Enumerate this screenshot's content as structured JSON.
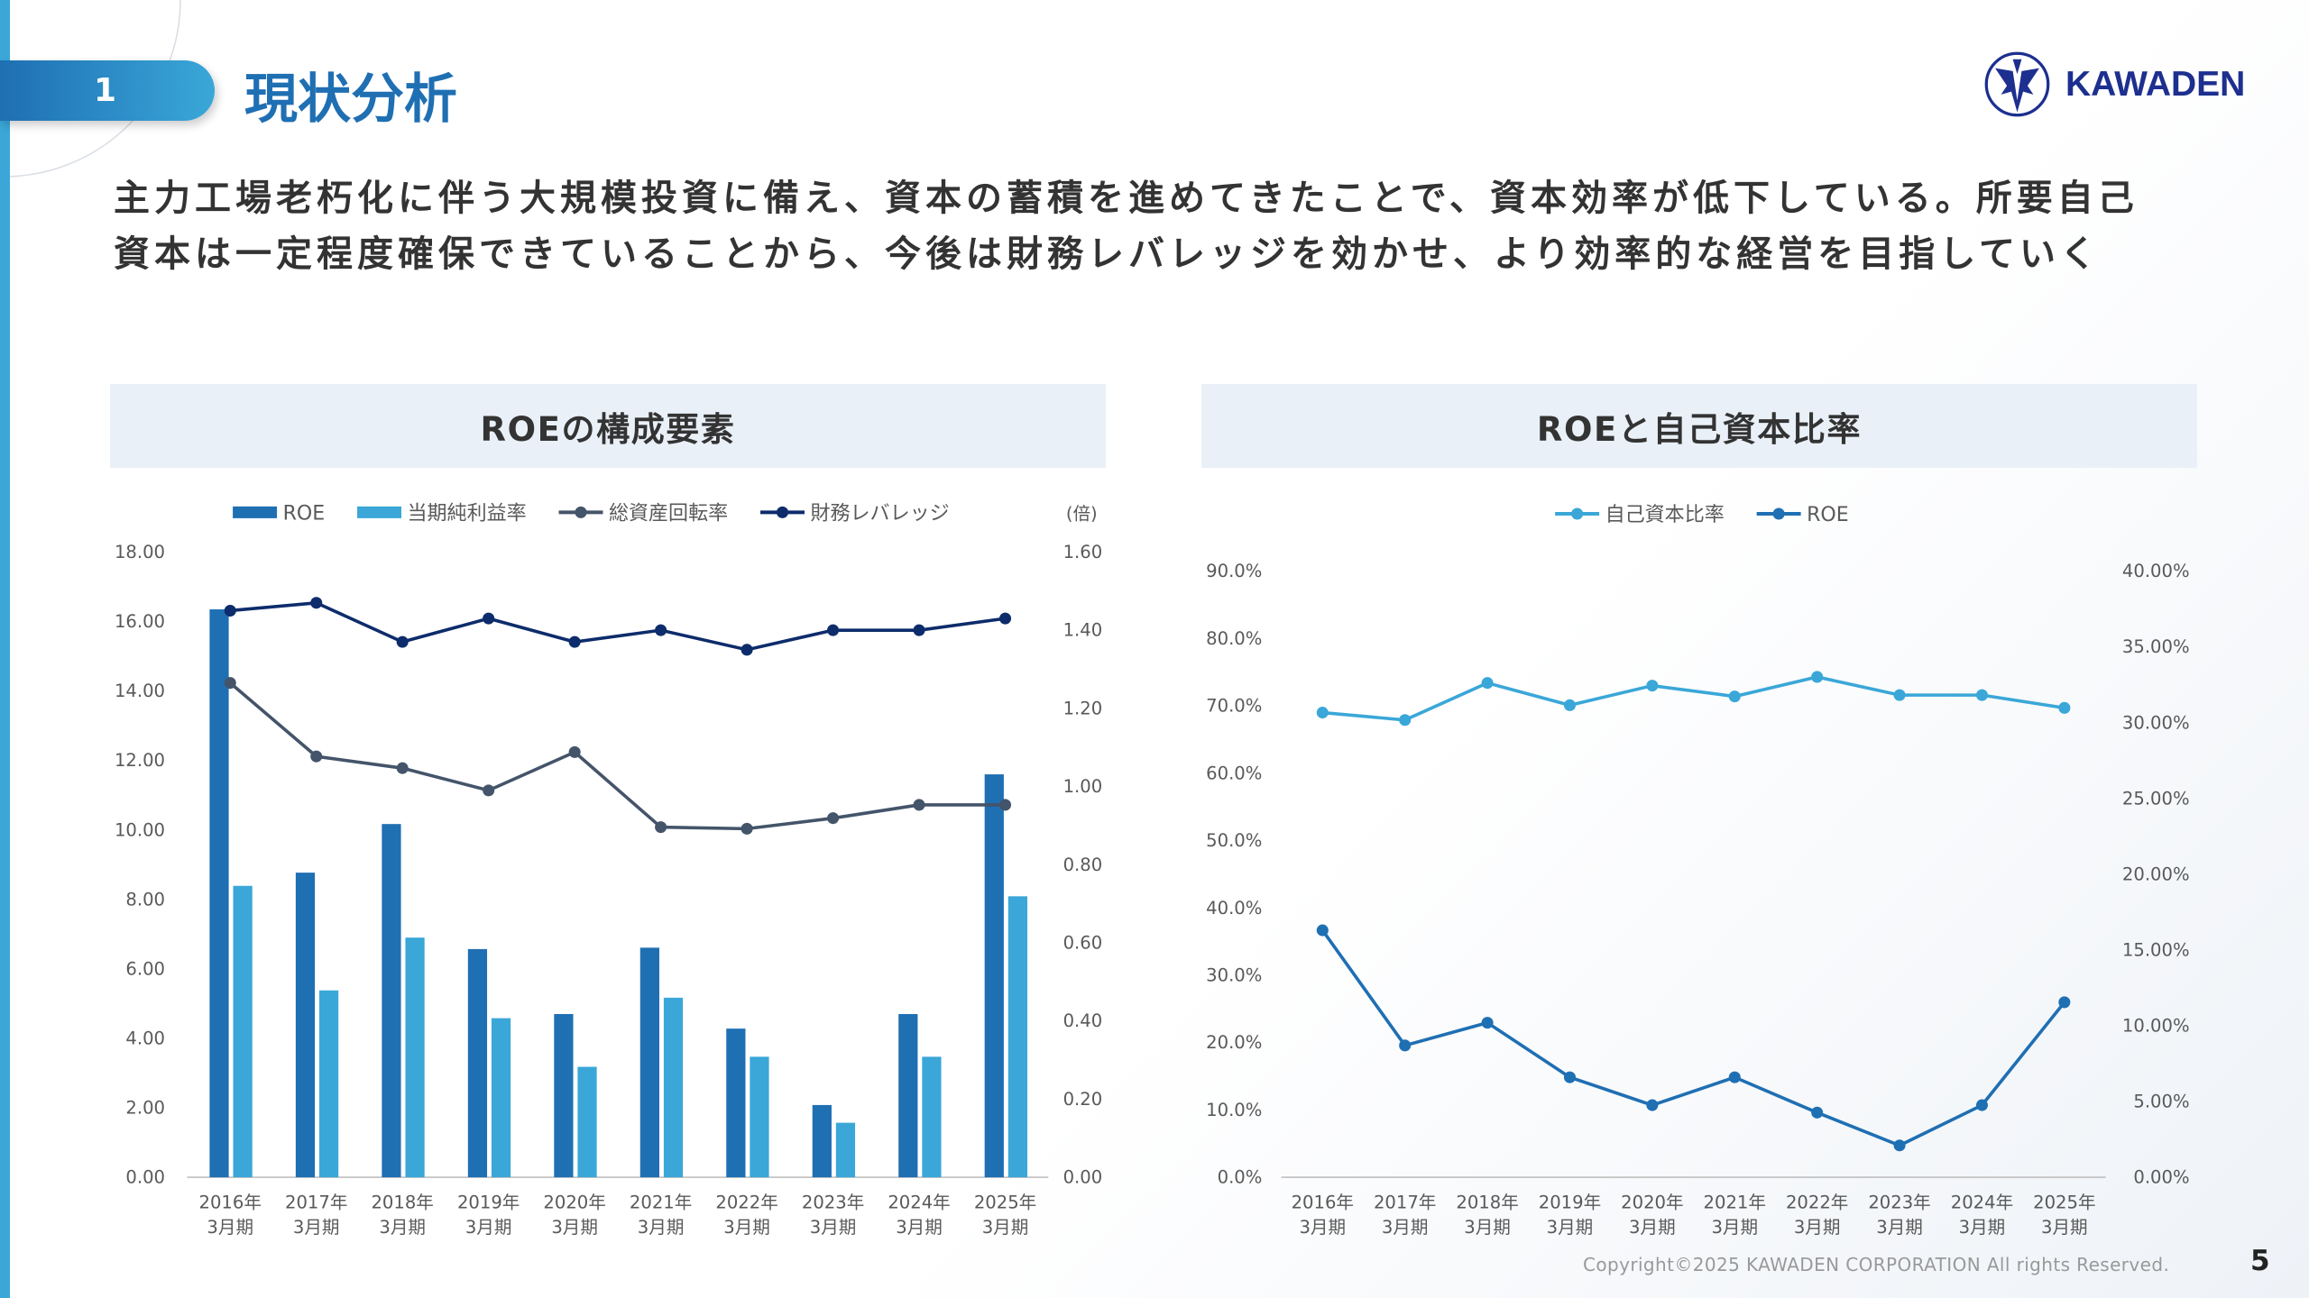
{
  "header": {
    "section_number": "1",
    "title": "現状分析",
    "logo_text": "KAWADEN"
  },
  "lead_text": [
    "主力工場老朽化に伴う大規模投資に備え、資本の蓄積を進めてきたことで、資本効率が低下している。所要自己",
    "資本は一定程度確保できていることから、今後は財務レバレッジを効かせ、より効率的な経営を目指していく"
  ],
  "colors": {
    "accent": "#1f6fb3",
    "light": "#3aa7d8",
    "dark_navy": "#0d2c6b",
    "gray_line": "#44546a"
  },
  "chart_data": [
    {
      "type": "bar+line",
      "title": "ROEの構成要素",
      "legend_position": "top",
      "categories": [
        "2016年\n3月期",
        "2017年\n3月期",
        "2018年\n3月期",
        "2019年\n3月期",
        "2020年\n3月期",
        "2021年\n3月期",
        "2022年\n3月期",
        "2023年\n3月期",
        "2024年\n3月期",
        "2025年\n3月期"
      ],
      "y_left": {
        "range": [
          0,
          18
        ],
        "ticks": [
          "0.00",
          "2.00",
          "4.00",
          "6.00",
          "8.00",
          "10.00",
          "12.00",
          "14.00",
          "16.00",
          "18.00"
        ]
      },
      "y_right": {
        "label": "(倍)",
        "range": [
          0,
          1.6
        ],
        "ticks": [
          "0.00",
          "0.20",
          "0.40",
          "0.60",
          "0.80",
          "1.00",
          "1.20",
          "1.40",
          "1.60"
        ]
      },
      "series": [
        {
          "name": "ROE",
          "kind": "bar",
          "axis": "left",
          "color": "#1f6fb3",
          "values": [
            16.35,
            8.77,
            10.17,
            6.57,
            4.7,
            6.61,
            4.28,
            2.08,
            4.7,
            11.6
          ]
        },
        {
          "name": "当期純利益率",
          "kind": "bar",
          "axis": "left",
          "color": "#3aa7d8",
          "values": [
            8.39,
            5.38,
            6.9,
            4.58,
            3.18,
            5.17,
            3.47,
            1.57,
            3.47,
            8.09
          ]
        },
        {
          "name": "総資産回転率",
          "kind": "line",
          "axis": "right",
          "color": "#44546a",
          "values": [
            1.265,
            1.077,
            1.047,
            0.99,
            1.088,
            0.896,
            0.892,
            0.919,
            0.953,
            0.953
          ]
        },
        {
          "name": "財務レバレッジ",
          "kind": "line",
          "axis": "right",
          "color": "#0d2c6b",
          "values": [
            1.45,
            1.47,
            1.37,
            1.43,
            1.37,
            1.4,
            1.35,
            1.4,
            1.4,
            1.43
          ]
        }
      ]
    },
    {
      "type": "line",
      "title": "ROEと自己資本比率",
      "legend_position": "top",
      "categories": [
        "2016年\n3月期",
        "2017年\n3月期",
        "2018年\n3月期",
        "2019年\n3月期",
        "2020年\n3月期",
        "2021年\n3月期",
        "2022年\n3月期",
        "2023年\n3月期",
        "2024年\n3月期",
        "2025年\n3月期"
      ],
      "y_left": {
        "range": [
          0,
          90
        ],
        "ticks": [
          "0.0%",
          "10.0%",
          "20.0%",
          "30.0%",
          "40.0%",
          "50.0%",
          "60.0%",
          "70.0%",
          "80.0%",
          "90.0%"
        ]
      },
      "y_right": {
        "range": [
          0,
          40
        ],
        "ticks": [
          "0.00%",
          "5.00%",
          "10.00%",
          "15.00%",
          "20.00%",
          "25.00%",
          "30.00%",
          "35.00%",
          "40.00%"
        ]
      },
      "series": [
        {
          "name": "自己資本比率",
          "kind": "line",
          "axis": "left",
          "color": "#3aa7d8",
          "values": [
            69.0,
            67.9,
            73.4,
            70.1,
            73.0,
            71.4,
            74.3,
            71.6,
            71.6,
            69.7
          ]
        },
        {
          "name": "ROE",
          "kind": "line",
          "axis": "right",
          "color": "#1f6fb3",
          "values": [
            16.3,
            8.7,
            10.2,
            6.6,
            4.76,
            6.6,
            4.27,
            2.1,
            4.76,
            11.55
          ]
        }
      ]
    }
  ],
  "footer": {
    "copyright": "Copyright©2025 KAWADEN CORPORATION All rights Reserved.",
    "page_number": "5"
  }
}
